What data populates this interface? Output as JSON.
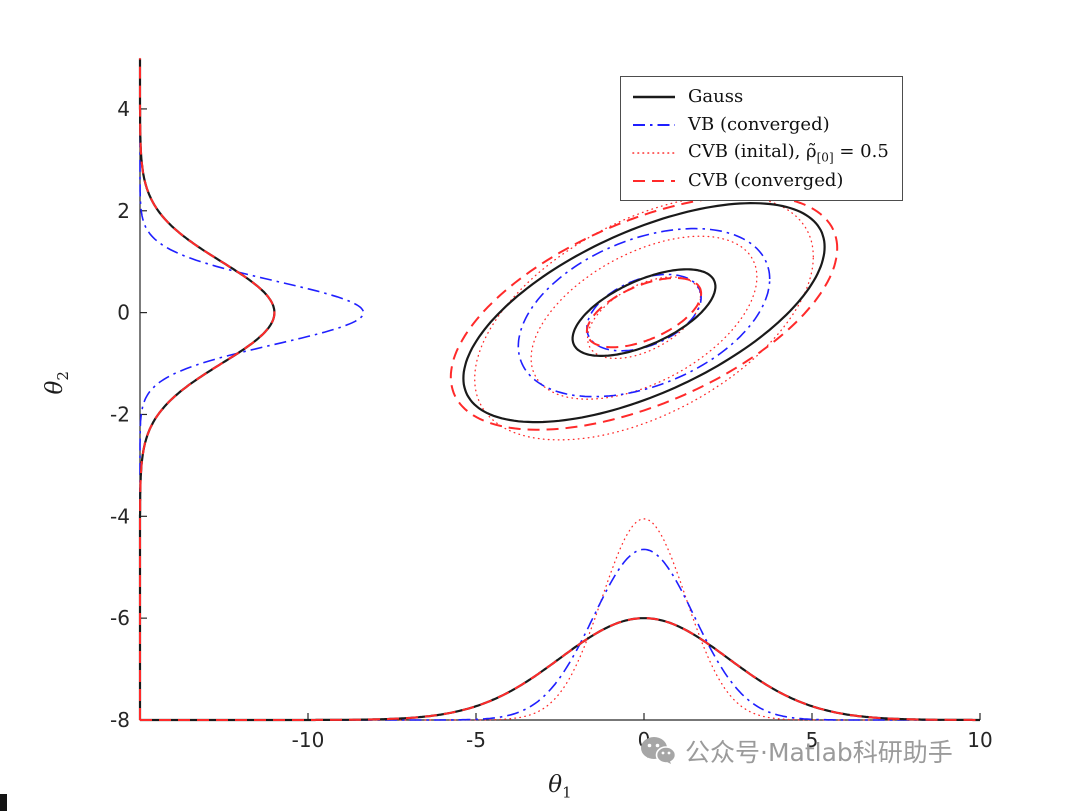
{
  "watermark": {
    "text": "公众号·Matlab科研助手",
    "icon": "wechat-icon"
  },
  "chart_data": {
    "type": "line",
    "title": "",
    "xlabel": {
      "base": "θ",
      "sub": "1"
    },
    "ylabel": {
      "base": "θ",
      "sub": "2"
    },
    "xlim": [
      -15,
      10
    ],
    "ylim": [
      -8,
      5
    ],
    "x_ticks": [
      -10,
      -5,
      0,
      5,
      10
    ],
    "y_ticks": [
      -8,
      -6,
      -4,
      -2,
      0,
      2,
      4
    ],
    "grid": false,
    "axes_color": "#262626",
    "legend": {
      "position": "top-right",
      "entries": [
        {
          "text": "Gauss",
          "sub": "",
          "after": "",
          "color": "#1a1a1a",
          "style": "solid"
        },
        {
          "text": "VB (converged)",
          "sub": "",
          "after": "",
          "color": "#1f1fff",
          "style": "dashdot"
        },
        {
          "text": "CVB (inital), ρ̃",
          "sub": "[0]",
          "after": " = 0.5",
          "color": "#ff2a2a",
          "style": "dotted"
        },
        {
          "text": "CVB (converged)",
          "sub": "",
          "after": "",
          "color": "#ff2a2a",
          "style": "dashed"
        }
      ]
    },
    "series": [
      {
        "key": "cvb-initial",
        "name": "CVB (inital), rho0=0.5",
        "color": "#ff2a2a",
        "style": "dotted",
        "width": 1.3,
        "contour": {
          "center": [
            0,
            -0.1
          ],
          "sigma": [
            2.1,
            1.0
          ],
          "rho": 0.5,
          "radii": [
            0.8,
            1.6,
            2.4
          ]
        },
        "marginal_x": {
          "mean": 0,
          "sigma": 1.25,
          "amp": 3.95
        },
        "marginal_y": {
          "mean": 0,
          "sigma": 1.0,
          "amp": 4.0
        }
      },
      {
        "key": "vb-converged",
        "name": "VB (converged)",
        "color": "#1f1fff",
        "style": "dashdot",
        "width": 1.6,
        "contour": {
          "center": [
            0,
            0
          ],
          "sigma": [
            1.7,
            0.75
          ],
          "rho": 0.4,
          "radii": [
            1.0,
            2.2
          ]
        },
        "marginal_x": {
          "mean": 0,
          "sigma": 1.5,
          "amp": 3.35
        },
        "marginal_y": {
          "mean": 0,
          "sigma": 0.62,
          "amp": 6.65
        }
      },
      {
        "key": "gauss",
        "name": "Gauss",
        "color": "#1a1a1a",
        "style": "solid",
        "width": 2.2,
        "contour": {
          "center": [
            0,
            0
          ],
          "sigma": [
            2.5,
            1.0
          ],
          "rho": 0.6,
          "radii": [
            0.85,
            2.15
          ]
        },
        "marginal_x": {
          "mean": 0,
          "sigma": 2.5,
          "amp": 2.0
        },
        "marginal_y": {
          "mean": 0,
          "sigma": 1.0,
          "amp": 4.0
        }
      },
      {
        "key": "cvb-converged",
        "name": "CVB (converged)",
        "color": "#ff2a2a",
        "style": "dashed",
        "width": 2.0,
        "contour": {
          "center": [
            0,
            0
          ],
          "sigma": [
            2.5,
            1.0
          ],
          "rho": 0.55,
          "radii": [
            0.68,
            2.3
          ]
        },
        "marginal_x": {
          "mean": 0,
          "sigma": 2.5,
          "amp": 2.0
        },
        "marginal_y": {
          "mean": 0,
          "sigma": 1.0,
          "amp": 4.0
        }
      }
    ]
  }
}
